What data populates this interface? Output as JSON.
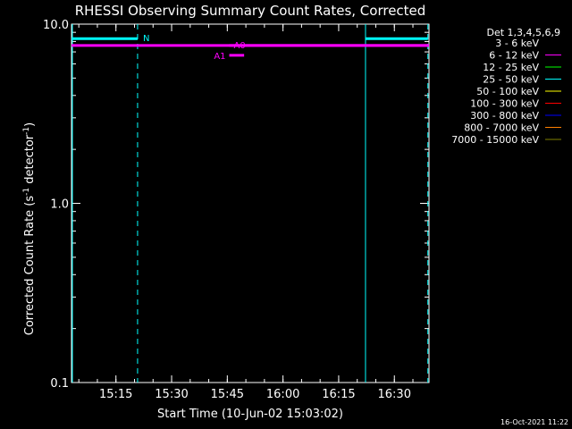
{
  "chart_data": {
    "type": "line",
    "title": "RHESSI Observing Summary Count Rates, Corrected",
    "xlabel": "Start Time (10-Jun-02 15:03:02)",
    "ylabel_main": "Corrected Count Rate (s",
    "ylabel_sup1": "-1",
    "ylabel_mid": " detector",
    "ylabel_sup2": "-1",
    "ylabel_end": ")",
    "y_scale": "log",
    "ylim": [
      0.1,
      10.0
    ],
    "xlim_minutes": [
      0,
      96.3
    ],
    "y_ticks": [
      {
        "value": 0.1,
        "label": "0.1"
      },
      {
        "value": 1.0,
        "label": "1.0"
      },
      {
        "value": 10.0,
        "label": "10.0"
      }
    ],
    "x_ticks": [
      {
        "minute": 11.97,
        "label": "15:15"
      },
      {
        "minute": 26.97,
        "label": "15:30"
      },
      {
        "minute": 41.97,
        "label": "15:45"
      },
      {
        "minute": 56.97,
        "label": "16:00"
      },
      {
        "minute": 71.97,
        "label": "16:15"
      },
      {
        "minute": 86.97,
        "label": "16:30"
      }
    ],
    "legend_title": "Det 1,3,4,5,6,9",
    "legend_position": "right",
    "legend": [
      {
        "label": "3 - 6 keV",
        "color": "#000000"
      },
      {
        "label": "6 - 12 keV",
        "color": "#ff00ff"
      },
      {
        "label": "12 - 25 keV",
        "color": "#00ff00"
      },
      {
        "label": "25 - 50 keV",
        "color": "#00ffff"
      },
      {
        "label": "50 - 100 keV",
        "color": "#ffff00"
      },
      {
        "label": "100 - 300 keV",
        "color": "#ff0000"
      },
      {
        "label": "300 - 800 keV",
        "color": "#0000ff"
      },
      {
        "label": "800 - 7000 keV",
        "color": "#ff8000"
      },
      {
        "label": "7000 - 15000 keV",
        "color": "#808000"
      }
    ],
    "series": [
      {
        "name": "6 - 12 keV",
        "color": "#ff00ff",
        "x_minutes": [
          0,
          96.3
        ],
        "y": [
          7.6,
          7.6
        ]
      }
    ],
    "flag_bars": [
      {
        "label": "N",
        "color": "#00ffff",
        "y": 8.3,
        "start_min": 0,
        "end_min": 17.8
      },
      {
        "label": "",
        "color": "#00ffff",
        "y": 8.3,
        "start_min": 79.2,
        "end_min": 96.0
      },
      {
        "label": "A0",
        "color": "#ff00ff",
        "y": 7.6,
        "start_min": 42.5,
        "end_min": 96.3
      },
      {
        "label": "A1",
        "color": "#ff00ff",
        "y": 6.7,
        "start_min": 42.5,
        "end_min": 46.5
      }
    ],
    "solid_vlines_min": [
      0,
      79.2
    ],
    "dashed_vlines_min": [
      17.8,
      96.0
    ],
    "line_color": "#00ffff",
    "timestamp": "16-Oct-2021 11:22"
  }
}
